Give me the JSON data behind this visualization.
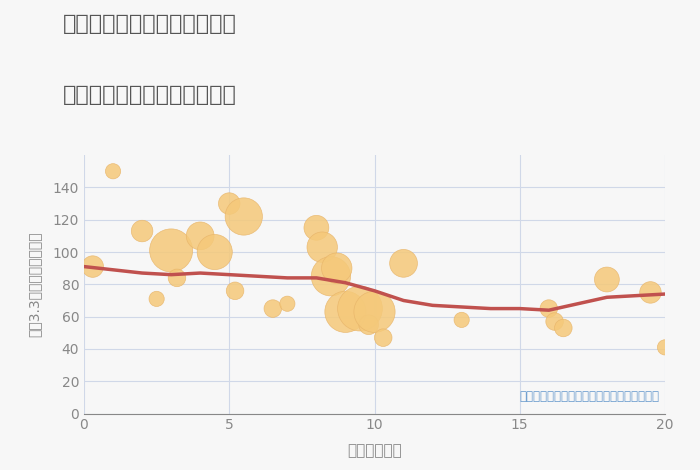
{
  "title_line1": "神奈川県横須賀市佐島の丘の",
  "title_line2": "駅距離別中古マンション価格",
  "xlabel": "駅距離（分）",
  "ylabel": "坪（3.3㎡）単価（万円）",
  "annotation": "円の大きさは、取引のあった物件面積を示す",
  "xlim": [
    0,
    20
  ],
  "ylim": [
    0,
    160
  ],
  "yticks": [
    0,
    20,
    40,
    60,
    80,
    100,
    120,
    140
  ],
  "xticks": [
    0,
    5,
    10,
    15,
    20
  ],
  "scatter_x": [
    0.3,
    1.0,
    2.0,
    2.5,
    3.0,
    3.2,
    4.0,
    4.5,
    5.0,
    5.2,
    5.5,
    6.5,
    7.0,
    8.0,
    8.2,
    8.5,
    8.7,
    9.0,
    9.5,
    9.8,
    10.0,
    10.3,
    11.0,
    13.0,
    16.0,
    16.2,
    16.5,
    18.0,
    19.5,
    20.0
  ],
  "scatter_y": [
    91,
    150,
    113,
    71,
    101,
    84,
    110,
    100,
    130,
    76,
    122,
    65,
    68,
    115,
    103,
    85,
    90,
    63,
    65,
    55,
    63,
    47,
    93,
    58,
    65,
    57,
    53,
    83,
    75,
    41
  ],
  "scatter_s": [
    30,
    15,
    30,
    15,
    120,
    20,
    50,
    80,
    30,
    20,
    90,
    20,
    15,
    40,
    60,
    100,
    60,
    110,
    130,
    25,
    110,
    20,
    50,
    15,
    20,
    20,
    20,
    40,
    30,
    15
  ],
  "bubble_color": "#F5C97A",
  "bubble_alpha": 0.85,
  "bubble_edgecolor": "#E8B56A",
  "trend_x": [
    0,
    1,
    2,
    3,
    4,
    5,
    6,
    7,
    8,
    9,
    10,
    11,
    12,
    13,
    14,
    15,
    16,
    17,
    18,
    19,
    20
  ],
  "trend_y": [
    91,
    89,
    87,
    86,
    87,
    86,
    85,
    84,
    84,
    81,
    76,
    70,
    67,
    66,
    65,
    65,
    64,
    68,
    72,
    73,
    74
  ],
  "trend_color": "#C0514E",
  "trend_linewidth": 2.5,
  "bg_color": "#F7F7F7",
  "grid_color": "#D0D8E8",
  "title_color": "#555555",
  "axis_color": "#888888",
  "annotation_color": "#6699CC"
}
